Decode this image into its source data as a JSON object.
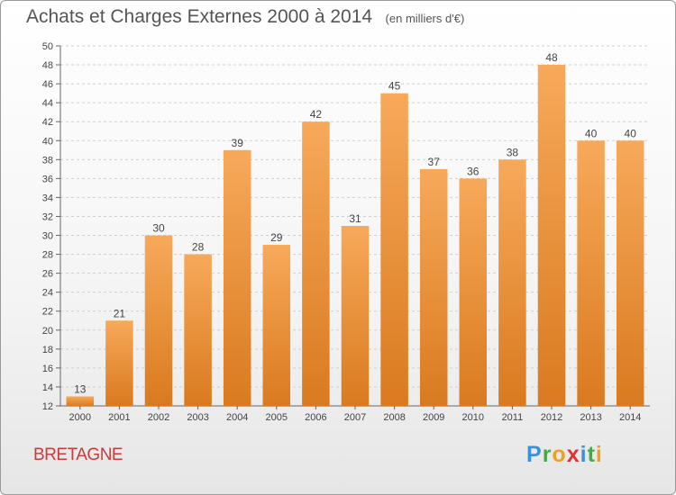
{
  "chart_data": {
    "type": "bar",
    "title": "Achats et Charges Externes 2000 à 2014",
    "subtitle": "(en milliers d'€)",
    "categories": [
      "2000",
      "2001",
      "2002",
      "2003",
      "2004",
      "2005",
      "2006",
      "2007",
      "2008",
      "2009",
      "2010",
      "2011",
      "2012",
      "2013",
      "2014"
    ],
    "values": [
      13,
      21,
      30,
      28,
      39,
      29,
      42,
      31,
      45,
      37,
      36,
      38,
      48,
      40,
      40
    ],
    "ylim": [
      12,
      50
    ],
    "yticks": [
      12,
      14,
      16,
      18,
      20,
      22,
      24,
      26,
      28,
      30,
      32,
      34,
      36,
      38,
      40,
      42,
      44,
      46,
      48,
      50
    ],
    "grid": true,
    "bar_color_top": "#f7a95a",
    "bar_color_bottom": "#d97a1f"
  },
  "region_label": "BRETAGNE",
  "logo": {
    "letters": [
      "P",
      "r",
      "o",
      "x",
      "i",
      "t",
      "i"
    ],
    "colors": [
      "#3d8fd6",
      "#4aa84a",
      "#f0a020",
      "#e03030",
      "#3d8fd6",
      "#4aa84a",
      "#f0a020"
    ]
  }
}
